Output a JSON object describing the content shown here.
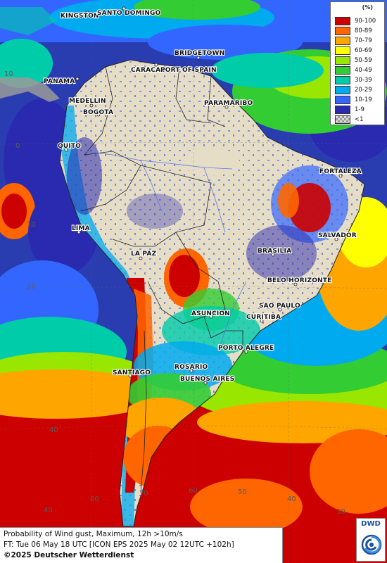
{
  "map": {
    "cities": [
      "KINGSTON",
      "SANTO DOMINGO",
      "BRIDGETOWN",
      "PANAMA",
      "CARACAS",
      "PORT OF SPAIN",
      "PARAMARIBO",
      "MEDELLIN",
      "BOGOTA",
      "QUITO",
      "FORTALEZA",
      "LIMA",
      "SALVADOR",
      "LA PAZ",
      "BRASILIA",
      "BELO HORIZONTE",
      "SAO PAULO",
      "ASUNCION",
      "CURITIBA",
      "PORTO ALEGRE",
      "SANTIAGO",
      "ROSARIO",
      "BUENOS AIRES"
    ],
    "grid_labels": [
      "10",
      "0",
      "10",
      "20",
      "40",
      "70",
      "60",
      "50",
      "40",
      "30",
      "40",
      "80"
    ]
  },
  "legend": {
    "title": "(%)",
    "items": [
      {
        "label": "90-100",
        "color": "#cc0000"
      },
      {
        "label": "80-89",
        "color": "#ff6600"
      },
      {
        "label": "70-79",
        "color": "#ffa500"
      },
      {
        "label": "60-69",
        "color": "#ffff00"
      },
      {
        "label": "50-59",
        "color": "#99e600"
      },
      {
        "label": "40-49",
        "color": "#33cc33"
      },
      {
        "label": "30-39",
        "color": "#00ccaa"
      },
      {
        "label": "20-29",
        "color": "#00aaee"
      },
      {
        "label": "10-19",
        "color": "#3366ff"
      },
      {
        "label": "1-9",
        "color": "#2a2ab0"
      },
      {
        "label": "<1",
        "color": "checker"
      }
    ]
  },
  "info": {
    "line1": "Probability of Wind gust, Maximum, 12h >10m/s",
    "line2": "FT: Tue 06 May 18 UTC [ICON EPS 2025 May 02 12UTC +102h]",
    "line3": "©2025 Deutscher Wetterdienst"
  },
  "logo": {
    "text": "DWD"
  }
}
